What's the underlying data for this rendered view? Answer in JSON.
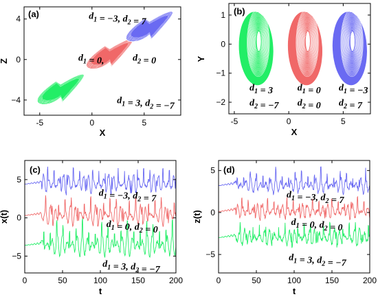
{
  "colors": {
    "green": "#22ee66",
    "red": "#f06868",
    "blue": "#6a6af2"
  },
  "chart_data": [
    {
      "id": "a",
      "type": "scatter",
      "panel_label": "(a)",
      "xlabel": "X",
      "ylabel": "Z",
      "xlim": [
        -6.5,
        8.5
      ],
      "ylim": [
        -5.5,
        5.2
      ],
      "xticks": [
        -5,
        0,
        5
      ],
      "yticks": [
        -4,
        0,
        4
      ],
      "grid": false,
      "series": [
        {
          "color": "green",
          "center": [
            -3.0,
            -3.0
          ]
        },
        {
          "color": "red",
          "center": [
            1.7,
            0.5
          ]
        },
        {
          "color": "blue",
          "center": [
            5.5,
            3.2
          ]
        }
      ],
      "annotations": [
        {
          "text": "d₁ = −3, d₂ = 7",
          "x": -0.3,
          "y": 4.0
        },
        {
          "text": "d₁ = 0,",
          "x": -1.3,
          "y": -0.1
        },
        {
          "text": "d₂ = 0",
          "x": 3.9,
          "y": -0.1
        },
        {
          "text": "d₁ = 3, d₂ = −7",
          "x": 2.4,
          "y": -4.3
        }
      ]
    },
    {
      "id": "b",
      "type": "scatter",
      "panel_label": "(b)",
      "xlabel": "X",
      "ylabel": "Y",
      "xlim": [
        -5.5,
        7.5
      ],
      "ylim": [
        -2.4,
        1.4
      ],
      "xticks": [
        -5,
        0,
        5
      ],
      "yticks": [
        -2,
        -1,
        0,
        1
      ],
      "grid": false,
      "series": [
        {
          "color": "green",
          "center": [
            -3.0,
            -0.15
          ]
        },
        {
          "color": "red",
          "center": [
            1.5,
            -0.15
          ]
        },
        {
          "color": "blue",
          "center": [
            5.6,
            -0.15
          ]
        }
      ],
      "annotations": [
        {
          "text": "d₁ = 3",
          "x": -3.6,
          "y": -1.6
        },
        {
          "text": "d₂ = −7",
          "x": -3.6,
          "y": -2.12
        },
        {
          "text": "d₁ = 0",
          "x": 0.8,
          "y": -1.6
        },
        {
          "text": "d₂ = 0",
          "x": 0.8,
          "y": -2.12
        },
        {
          "text": "d₁ = −3",
          "x": 4.6,
          "y": -1.6
        },
        {
          "text": "d₂ = 7",
          "x": 4.6,
          "y": -2.12
        }
      ]
    },
    {
      "id": "c",
      "type": "line",
      "panel_label": "(c)",
      "xlabel": "t",
      "ylabel": "x(t)",
      "xlim": [
        0,
        200
      ],
      "ylim": [
        -7.2,
        7.5
      ],
      "xticks": [
        0,
        50,
        100,
        150,
        200
      ],
      "yticks": [
        -5,
        0,
        5
      ],
      "grid": false,
      "series": [
        {
          "color": "blue",
          "offset": 4.4,
          "amplitude": 1.3,
          "seed": 3
        },
        {
          "color": "red",
          "offset": 0.3,
          "amplitude": 1.3,
          "seed": 7
        },
        {
          "color": "green",
          "offset": -3.6,
          "amplitude": 1.5,
          "seed": 11
        }
      ],
      "annotations": [
        {
          "text": "d₁ = −3, d₂ = 7",
          "x": 98,
          "y": 2.9
        },
        {
          "text": "d₁ = 0, d₂ = 0",
          "x": 108,
          "y": -1.2
        },
        {
          "text": "d₁ = 3, d₂ = −7",
          "x": 103,
          "y": -6.4
        }
      ]
    },
    {
      "id": "d",
      "type": "line",
      "panel_label": "(d)",
      "xlabel": "t",
      "ylabel": "z(t)",
      "xlim": [
        0,
        200
      ],
      "ylim": [
        -7.2,
        6.2
      ],
      "xticks": [
        0,
        50,
        100,
        150,
        200
      ],
      "yticks": [
        -5,
        0,
        5
      ],
      "grid": false,
      "series": [
        {
          "color": "blue",
          "offset": 3.2,
          "amplitude": 0.9,
          "seed": 5
        },
        {
          "color": "red",
          "offset": 0.1,
          "amplitude": 0.9,
          "seed": 9
        },
        {
          "color": "green",
          "offset": -3.0,
          "amplitude": 1.0,
          "seed": 13
        }
      ],
      "annotations": [
        {
          "text": "d₁ = −3, d₂ = 7",
          "x": 90,
          "y": 1.8
        },
        {
          "text": "d₁ = 0, d₂ = 0",
          "x": 96,
          "y": -1.5
        },
        {
          "text": "d₁ = 3, d₂ = −7",
          "x": 93,
          "y": -5.7
        }
      ]
    }
  ]
}
